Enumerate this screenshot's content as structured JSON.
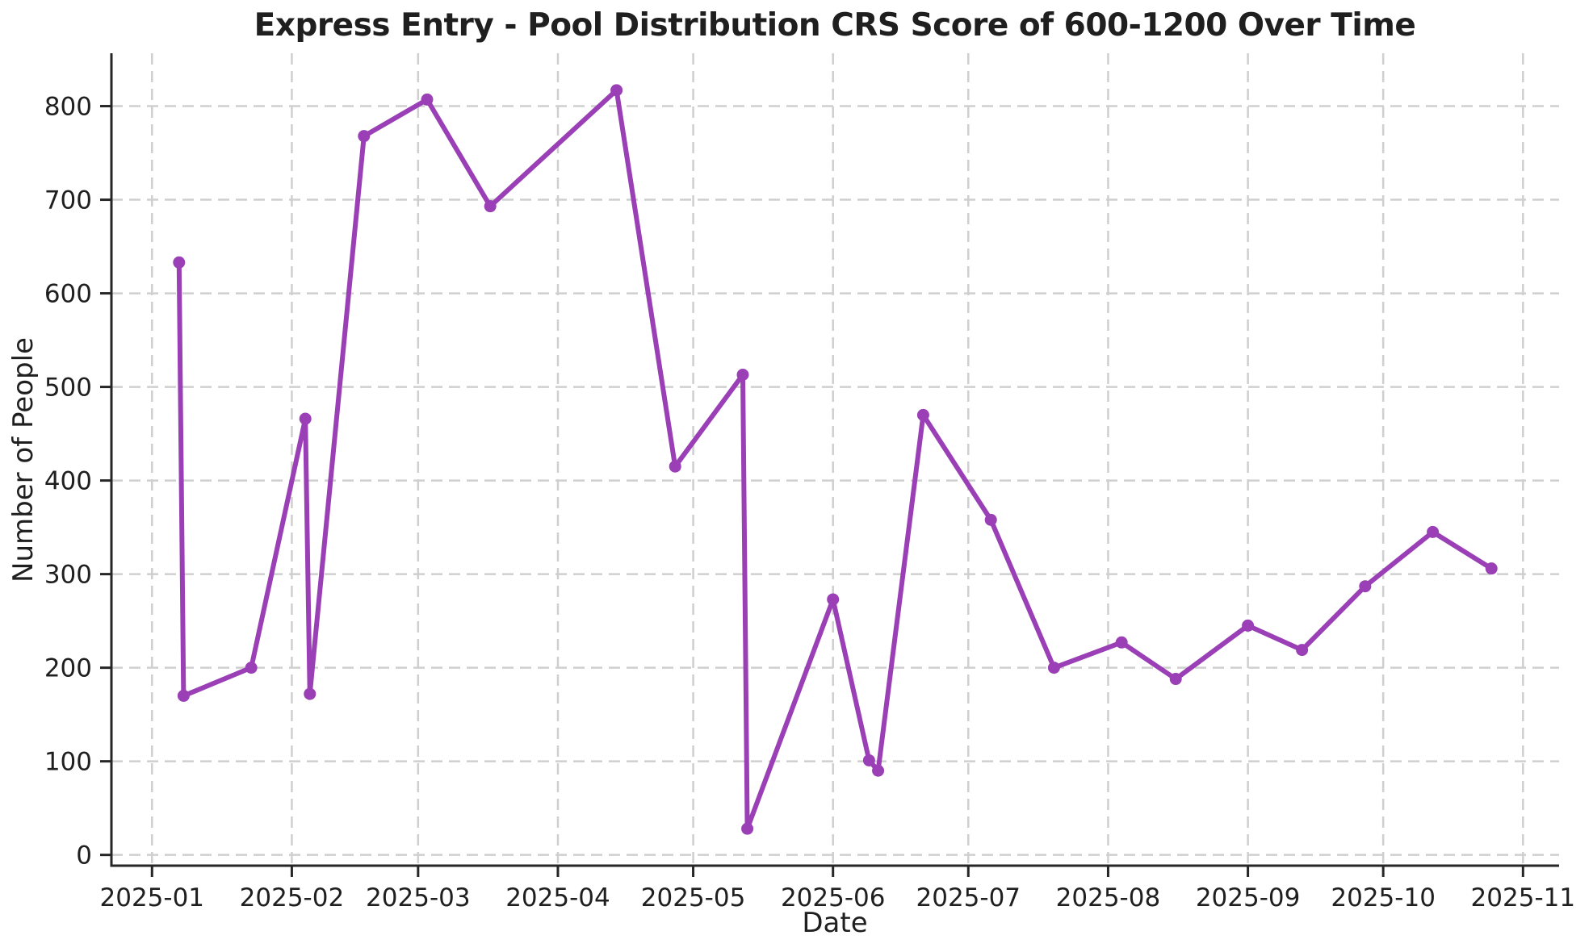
{
  "chart_data": {
    "type": "line",
    "title": "Express Entry - Pool Distribution CRS Score of 600-1200 Over Time",
    "xlabel": "Date",
    "ylabel": "Number of People",
    "x": [
      "2025-01-07",
      "2025-01-08",
      "2025-01-23",
      "2025-02-04",
      "2025-02-05",
      "2025-02-17",
      "2025-03-03",
      "2025-03-17",
      "2025-04-14",
      "2025-04-27",
      "2025-05-12",
      "2025-05-13",
      "2025-06-01",
      "2025-06-09",
      "2025-06-11",
      "2025-06-21",
      "2025-07-06",
      "2025-07-20",
      "2025-08-04",
      "2025-08-16",
      "2025-09-01",
      "2025-09-13",
      "2025-09-27",
      "2025-10-12",
      "2025-10-25"
    ],
    "values": [
      633,
      170,
      200,
      466,
      172,
      768,
      807,
      693,
      817,
      415,
      513,
      28,
      273,
      101,
      90,
      470,
      358,
      200,
      227,
      188,
      245,
      219,
      287,
      345,
      306
    ],
    "xticks": [
      "2025-01",
      "2025-02",
      "2025-03",
      "2025-04",
      "2025-05",
      "2025-06",
      "2025-07",
      "2025-08",
      "2025-09",
      "2025-10",
      "2025-11"
    ],
    "yticks": [
      0,
      100,
      200,
      300,
      400,
      500,
      600,
      700,
      800
    ],
    "xlim": [
      "2024-12-23",
      "2025-11-09"
    ],
    "ylim": [
      -11.5,
      856.5
    ],
    "grid": true,
    "legend": "none",
    "colors": {
      "line": "#9a3fb5",
      "marker": "#9a3fb5",
      "grid": "#cfcfcf",
      "spine": "#262626",
      "text": "#1f1f1f"
    },
    "line_width": 6,
    "marker_radius": 7.5
  }
}
